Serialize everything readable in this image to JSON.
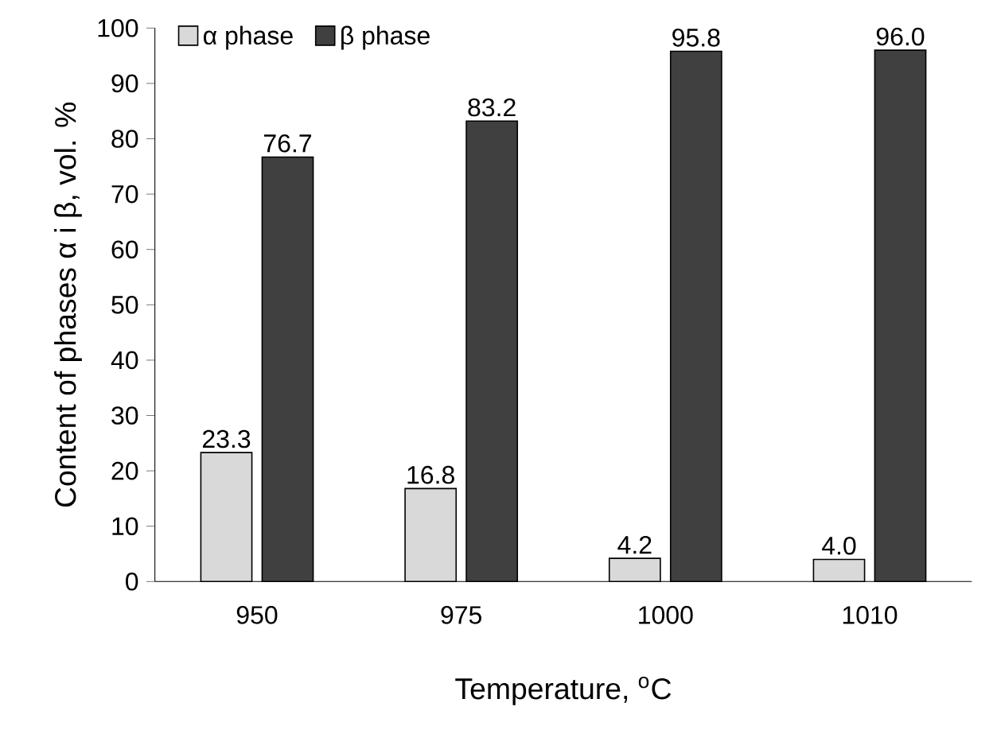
{
  "chart_data": {
    "type": "bar",
    "xlabel": "Temperature, $^{o}$C",
    "ylabel": "Content of phases α i β, vol. %",
    "categories": [
      "950",
      "975",
      "1000",
      "1010"
    ],
    "series": [
      {
        "name": "α phase",
        "color": "#d9d9d9",
        "values": [
          23.3,
          16.8,
          4.2,
          4.0
        ],
        "value_labels": [
          "23.3",
          "16.8",
          "4.2",
          "4.0"
        ]
      },
      {
        "name": "β phase",
        "color": "#404040",
        "values": [
          76.7,
          83.2,
          95.8,
          96.0
        ],
        "value_labels": [
          "76.7",
          "83.2",
          "95.8",
          "96.0"
        ]
      }
    ],
    "ylim": [
      0,
      100
    ],
    "yticks": [
      0,
      10,
      20,
      30,
      40,
      50,
      60,
      70,
      80,
      90,
      100
    ],
    "grid": false,
    "legend": "top left"
  }
}
